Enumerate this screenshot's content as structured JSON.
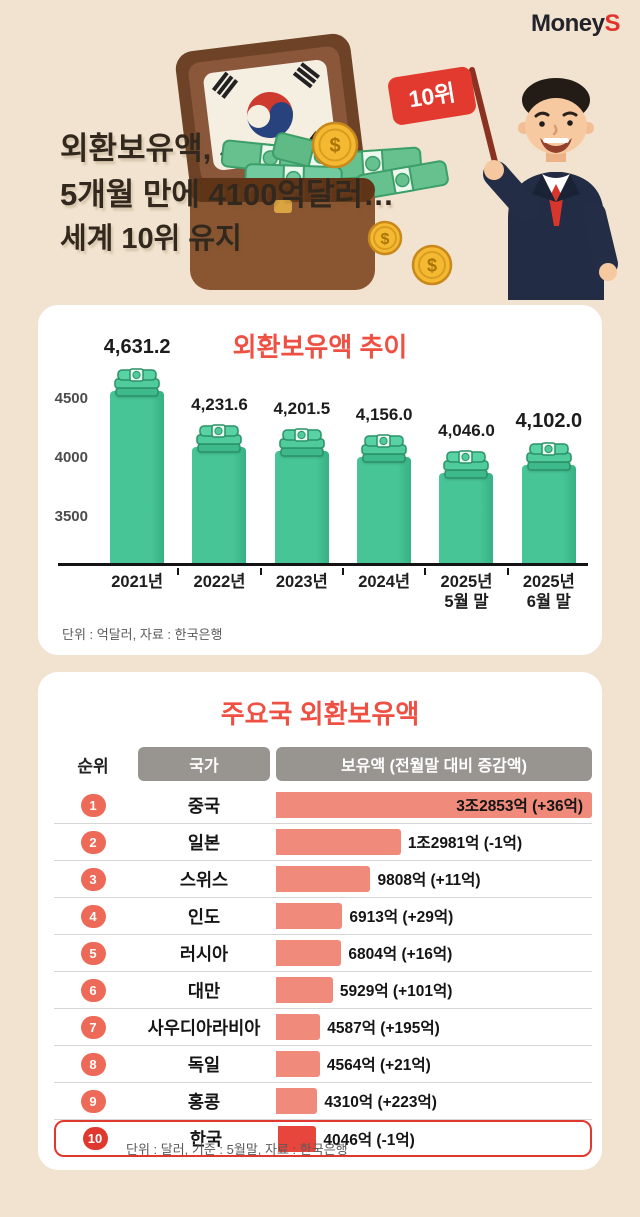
{
  "brand": {
    "name_primary": "Money",
    "name_accent": "S"
  },
  "header": {
    "title_lines": [
      "외환보유액,",
      "5개월 만에 4100억달러…",
      "세계 10위 유지"
    ],
    "flag_label": "10위"
  },
  "colors": {
    "background": "#f1e3cf",
    "accent_red": "#ee5143",
    "chart_bar_green": "#47c597",
    "table_bar_salmon": "#f08a7b",
    "highlight_red": "#e7463c",
    "header_pill_gray": "#98948f",
    "logo_accent": "#e1342e"
  },
  "icons": {
    "money_stack": "money-stack-icon",
    "coin": "coin-icon",
    "rank_flag": "rank-flag-icon",
    "korean_flag": "korean-flag-icon"
  },
  "chart_data": [
    {
      "type": "bar",
      "title": "외환보유액 추이",
      "categories": [
        "2021년",
        "2022년",
        "2023년",
        "2024년",
        "2025년\n5월 말",
        "2025년\n6월 말"
      ],
      "values": [
        4631.2,
        4231.6,
        4201.5,
        4156.0,
        4046.0,
        4102.0
      ],
      "value_labels": [
        "4,631.2",
        "4,231.6",
        "4,201.5",
        "4,156.0",
        "4,046.0",
        "4,102.0"
      ],
      "emphasized": [
        true,
        false,
        false,
        false,
        false,
        true
      ],
      "yticks": [
        4500,
        4000,
        3500
      ],
      "axis_range": [
        3400,
        4890
      ],
      "grid": false,
      "legend": "none",
      "note": "단위 : 억달러, 자료 : 한국은행"
    },
    {
      "type": "table",
      "title": "주요국 외환보유액",
      "columns": [
        "순위",
        "국가",
        "보유액 (전월말 대비 증감액)"
      ],
      "rows": [
        {
          "rank": 1,
          "country": "중국",
          "value": 32853,
          "label": "3조2853억 (+36억)",
          "highlight": false
        },
        {
          "rank": 2,
          "country": "일본",
          "value": 12981,
          "label": "1조2981억 (-1억)",
          "highlight": false
        },
        {
          "rank": 3,
          "country": "스위스",
          "value": 9808,
          "label": "9808억 (+11억)",
          "highlight": false
        },
        {
          "rank": 4,
          "country": "인도",
          "value": 6913,
          "label": "6913억 (+29억)",
          "highlight": false
        },
        {
          "rank": 5,
          "country": "러시아",
          "value": 6804,
          "label": "6804억 (+16억)",
          "highlight": false
        },
        {
          "rank": 6,
          "country": "대만",
          "value": 5929,
          "label": "5929억 (+101억)",
          "highlight": false
        },
        {
          "rank": 7,
          "country": "사우디아라비아",
          "value": 4587,
          "label": "4587억 (+195억)",
          "highlight": false
        },
        {
          "rank": 8,
          "country": "독일",
          "value": 4564,
          "label": "4564억 (+21억)",
          "highlight": false
        },
        {
          "rank": 9,
          "country": "홍콩",
          "value": 4310,
          "label": "4310억 (+223억)",
          "highlight": false
        },
        {
          "rank": 10,
          "country": "한국",
          "value": 4046,
          "label": "4046억 (-1억)",
          "highlight": true
        }
      ],
      "note": "단위 : 달러, 기준 : 5월말, 자료 : 한국은행"
    }
  ]
}
